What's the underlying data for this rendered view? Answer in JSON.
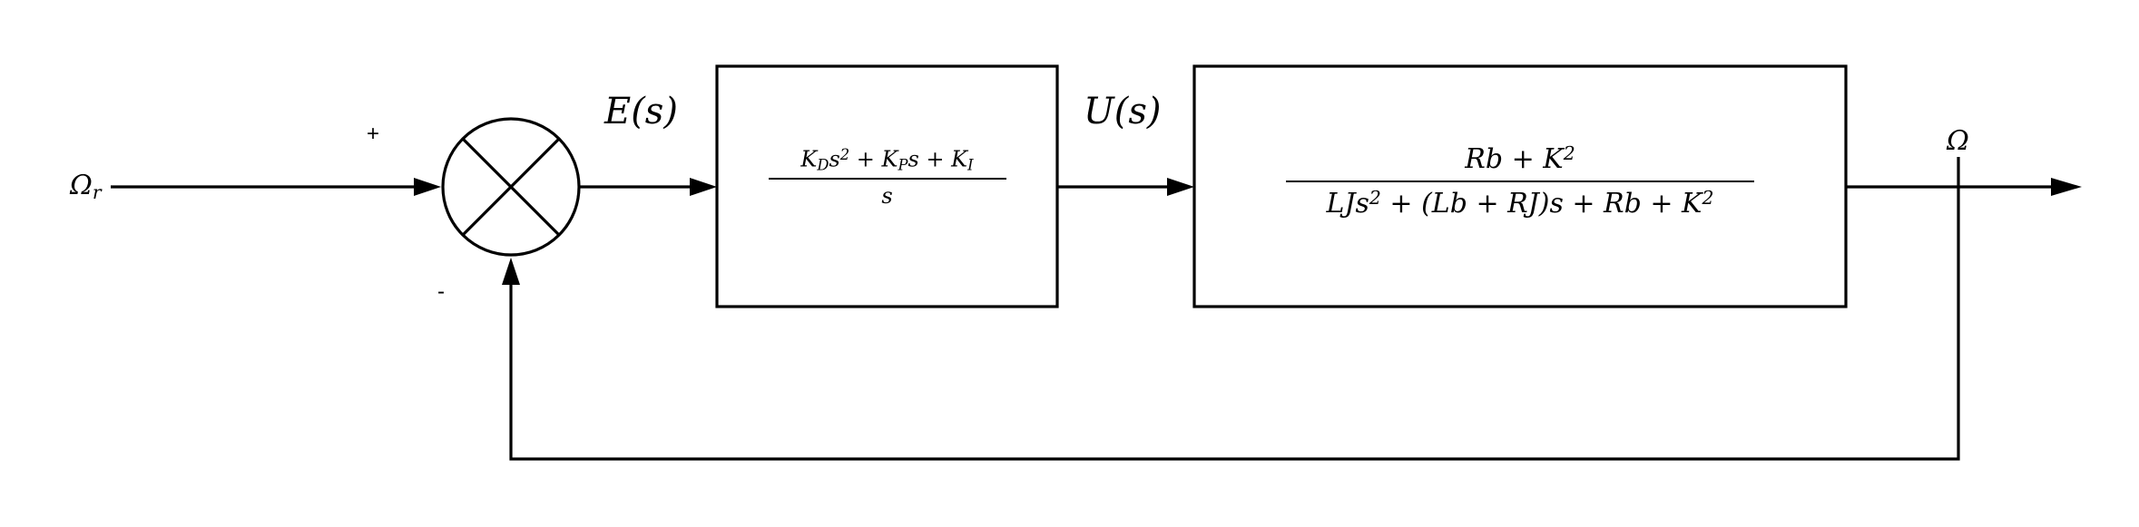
{
  "signals": {
    "reference": "Ω",
    "reference_sub": "r",
    "error": "E(s)",
    "control": "U(s)",
    "output": "Ω"
  },
  "summing_junction": {
    "plus_sign": "+",
    "minus_sign": "-"
  },
  "controller_block": {
    "num": {
      "t1": "K",
      "t1_sub": "D",
      "t1_b": "s",
      "t1_sup": "2",
      "op1": " + ",
      "t2": "K",
      "t2_sub": "P",
      "t2_b": "s",
      "op2": " + ",
      "t3": "K",
      "t3_sub": "I"
    },
    "den": "s"
  },
  "plant_block": {
    "num": {
      "a": "Rb + K",
      "a_sup": "2"
    },
    "den": {
      "a": "LJs",
      "a_sup": "2",
      "b": " + (Lb + RJ)s + Rb + K",
      "b_sup": "2"
    }
  }
}
